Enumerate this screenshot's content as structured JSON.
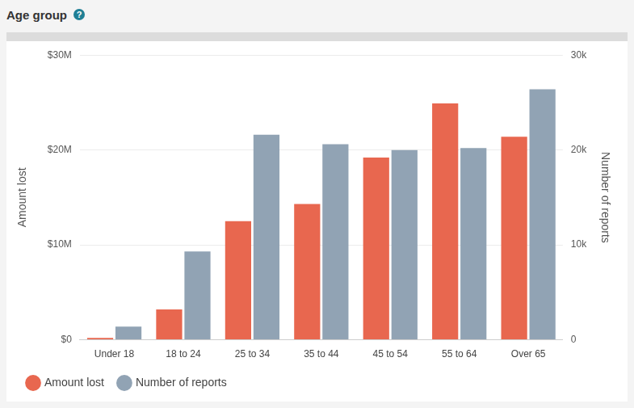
{
  "chart_data": {
    "type": "bar",
    "title": "Age group",
    "title_icon": "?",
    "categories": [
      "Under 18",
      "18 to 24",
      "25 to 34",
      "35 to 44",
      "45 to 54",
      "55 to 64",
      "Over 65"
    ],
    "series": [
      {
        "name": "Amount lost",
        "color": "#e8674f",
        "axis": "y",
        "values": [
          200000,
          3200000,
          12500000,
          14300000,
          19200000,
          24900000,
          21400000
        ]
      },
      {
        "name": "Number of reports",
        "color": "#91a3b4",
        "axis": "y2",
        "values": [
          1400,
          9300,
          21600,
          20600,
          20000,
          20200,
          26400
        ]
      }
    ],
    "y_label": "Amount lost",
    "y2_label": "Number of reports",
    "ylim": [
      0,
      30000000
    ],
    "yticks": [
      {
        "value": 0,
        "label": "$0"
      },
      {
        "value": 10000000,
        "label": "$10M"
      },
      {
        "value": 20000000,
        "label": "$20M"
      },
      {
        "value": 30000000,
        "label": "$30M"
      }
    ],
    "y2lim": [
      0,
      30000
    ],
    "y2ticks": [
      0,
      {
        "value": 10000,
        "label": "10k"
      },
      {
        "value": 20000,
        "label": "20k"
      },
      {
        "value": 30000,
        "label": "30k"
      }
    ],
    "grid": true,
    "legend": "bottom"
  }
}
